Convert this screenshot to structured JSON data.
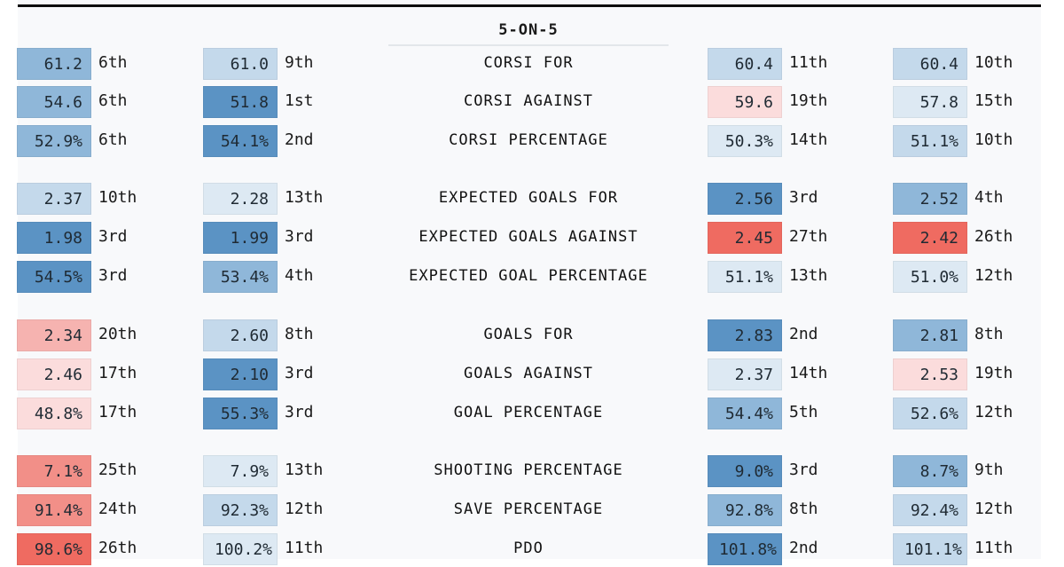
{
  "section_title": "5-ON-5",
  "colors": {
    "blue_dark": "#5b93c4",
    "blue_mid": "#8fb7d9",
    "blue_light": "#c4d9eb",
    "blue_pale": "#dde9f3",
    "red_pale": "#fbdcdc",
    "red_light": "#f6b3b0",
    "red_mid": "#f28f88",
    "red_dark": "#ef6b61",
    "topbar": "#0d0d0d"
  },
  "rows": [
    {
      "label": "CORSI FOR",
      "cells": [
        {
          "value": "61.2",
          "rank": "6th",
          "shade": "blue_mid"
        },
        {
          "value": "61.0",
          "rank": "9th",
          "shade": "blue_light"
        },
        {
          "value": "60.4",
          "rank": "11th",
          "shade": "blue_light"
        },
        {
          "value": "60.4",
          "rank": "10th",
          "shade": "blue_light"
        }
      ]
    },
    {
      "label": "CORSI AGAINST",
      "cells": [
        {
          "value": "54.6",
          "rank": "6th",
          "shade": "blue_mid"
        },
        {
          "value": "51.8",
          "rank": "1st",
          "shade": "blue_dark"
        },
        {
          "value": "59.6",
          "rank": "19th",
          "shade": "red_pale"
        },
        {
          "value": "57.8",
          "rank": "15th",
          "shade": "blue_pale"
        }
      ]
    },
    {
      "label": "CORSI PERCENTAGE",
      "cells": [
        {
          "value": "52.9%",
          "rank": "6th",
          "shade": "blue_mid"
        },
        {
          "value": "54.1%",
          "rank": "2nd",
          "shade": "blue_dark"
        },
        {
          "value": "50.3%",
          "rank": "14th",
          "shade": "blue_pale"
        },
        {
          "value": "51.1%",
          "rank": "10th",
          "shade": "blue_light"
        }
      ]
    },
    {
      "label": "EXPECTED GOALS FOR",
      "cells": [
        {
          "value": "2.37",
          "rank": "10th",
          "shade": "blue_light"
        },
        {
          "value": "2.28",
          "rank": "13th",
          "shade": "blue_pale"
        },
        {
          "value": "2.56",
          "rank": "3rd",
          "shade": "blue_dark"
        },
        {
          "value": "2.52",
          "rank": "4th",
          "shade": "blue_mid"
        }
      ]
    },
    {
      "label": "EXPECTED GOALS AGAINST",
      "cells": [
        {
          "value": "1.98",
          "rank": "3rd",
          "shade": "blue_dark"
        },
        {
          "value": "1.99",
          "rank": "3rd",
          "shade": "blue_dark"
        },
        {
          "value": "2.45",
          "rank": "27th",
          "shade": "red_dark"
        },
        {
          "value": "2.42",
          "rank": "26th",
          "shade": "red_dark"
        }
      ]
    },
    {
      "label": "EXPECTED GOAL PERCENTAGE",
      "cells": [
        {
          "value": "54.5%",
          "rank": "3rd",
          "shade": "blue_dark"
        },
        {
          "value": "53.4%",
          "rank": "4th",
          "shade": "blue_mid"
        },
        {
          "value": "51.1%",
          "rank": "13th",
          "shade": "blue_pale"
        },
        {
          "value": "51.0%",
          "rank": "12th",
          "shade": "blue_pale"
        }
      ]
    },
    {
      "label": "GOALS FOR",
      "cells": [
        {
          "value": "2.34",
          "rank": "20th",
          "shade": "red_light"
        },
        {
          "value": "2.60",
          "rank": "8th",
          "shade": "blue_light"
        },
        {
          "value": "2.83",
          "rank": "2nd",
          "shade": "blue_dark"
        },
        {
          "value": "2.81",
          "rank": "8th",
          "shade": "blue_mid"
        }
      ]
    },
    {
      "label": "GOALS AGAINST",
      "cells": [
        {
          "value": "2.46",
          "rank": "17th",
          "shade": "red_pale"
        },
        {
          "value": "2.10",
          "rank": "3rd",
          "shade": "blue_dark"
        },
        {
          "value": "2.37",
          "rank": "14th",
          "shade": "blue_pale"
        },
        {
          "value": "2.53",
          "rank": "19th",
          "shade": "red_pale"
        }
      ]
    },
    {
      "label": "GOAL PERCENTAGE",
      "cells": [
        {
          "value": "48.8%",
          "rank": "17th",
          "shade": "red_pale"
        },
        {
          "value": "55.3%",
          "rank": "3rd",
          "shade": "blue_dark"
        },
        {
          "value": "54.4%",
          "rank": "5th",
          "shade": "blue_mid"
        },
        {
          "value": "52.6%",
          "rank": "12th",
          "shade": "blue_light"
        }
      ]
    },
    {
      "label": "SHOOTING PERCENTAGE",
      "cells": [
        {
          "value": "7.1%",
          "rank": "25th",
          "shade": "red_mid"
        },
        {
          "value": "7.9%",
          "rank": "13th",
          "shade": "blue_pale"
        },
        {
          "value": "9.0%",
          "rank": "3rd",
          "shade": "blue_dark"
        },
        {
          "value": "8.7%",
          "rank": "9th",
          "shade": "blue_mid"
        }
      ]
    },
    {
      "label": "SAVE PERCENTAGE",
      "cells": [
        {
          "value": "91.4%",
          "rank": "24th",
          "shade": "red_mid"
        },
        {
          "value": "92.3%",
          "rank": "12th",
          "shade": "blue_light"
        },
        {
          "value": "92.8%",
          "rank": "8th",
          "shade": "blue_mid"
        },
        {
          "value": "92.4%",
          "rank": "12th",
          "shade": "blue_light"
        }
      ]
    },
    {
      "label": "PDO",
      "cells": [
        {
          "value": "98.6%",
          "rank": "26th",
          "shade": "red_dark"
        },
        {
          "value": "100.2%",
          "rank": "11th",
          "shade": "blue_pale"
        },
        {
          "value": "101.8%",
          "rank": "2nd",
          "shade": "blue_dark"
        },
        {
          "value": "101.1%",
          "rank": "11th",
          "shade": "blue_light"
        }
      ]
    }
  ]
}
